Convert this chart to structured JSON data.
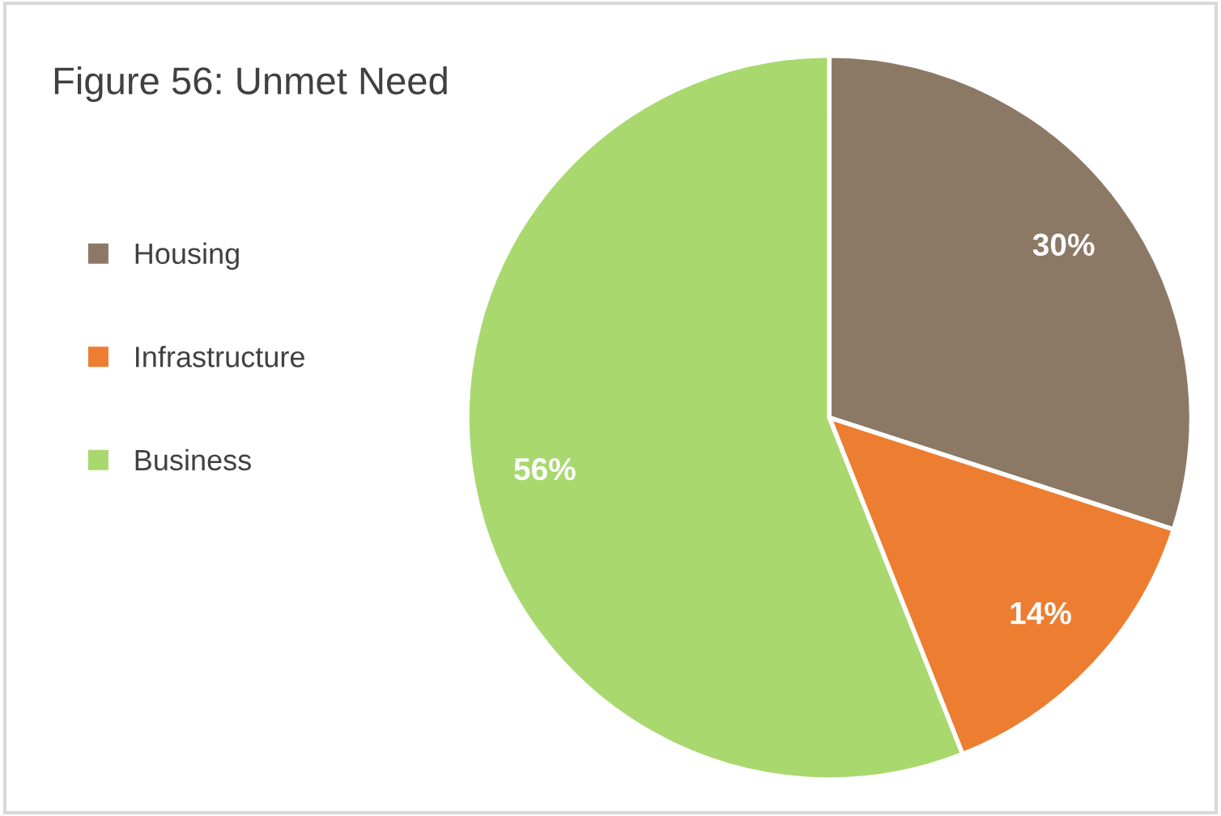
{
  "chart_data": {
    "type": "pie",
    "title": "Figure 56: Unmet Need",
    "categories": [
      "Housing",
      "Infrastructure",
      "Business"
    ],
    "values": [
      30,
      14,
      56
    ],
    "colors": [
      "#8b7966",
      "#ed7d31",
      "#a9d86e"
    ],
    "value_labels": [
      "30%",
      "14%",
      "56%"
    ],
    "legend": "left"
  }
}
